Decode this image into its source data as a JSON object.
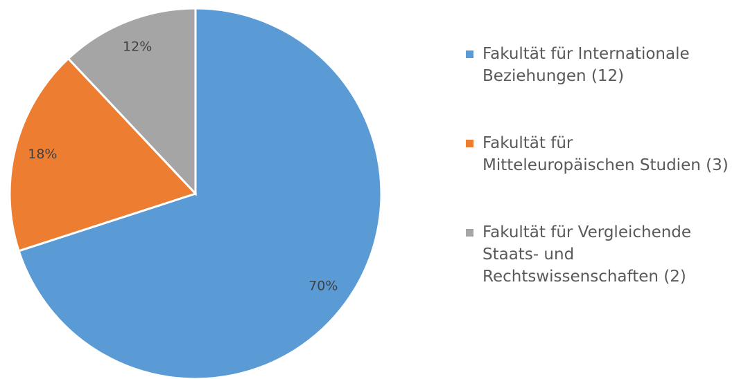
{
  "chart_data": {
    "type": "pie",
    "series": [
      {
        "name": "Fakultät für Internationale Beziehungen (12)",
        "color": "#5b9bd5"
      },
      {
        "name": "Fakultät für Mitteleuropäischen Studien (3)",
        "color": "#ed7d31"
      },
      {
        "name": "Fakultät für Vergleichende Staats- und Rechtswissenschaften (2)",
        "color": "#a5a5a5"
      }
    ],
    "values": [
      70,
      18,
      12
    ],
    "value_labels": [
      "70%",
      "18%",
      "12%"
    ],
    "legend": "right"
  }
}
